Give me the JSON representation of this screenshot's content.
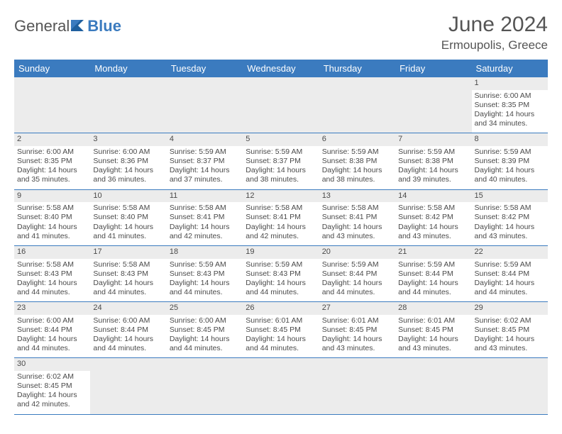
{
  "brand": {
    "part1": "General",
    "part2": "Blue"
  },
  "title": "June 2024",
  "location": "Ermoupolis, Greece",
  "colors": {
    "header_bg": "#3b7bbf",
    "header_text": "#ffffff",
    "daynum_bg": "#ececec",
    "text": "#4a4a4a",
    "rule": "#3b7bbf"
  },
  "day_headers": [
    "Sunday",
    "Monday",
    "Tuesday",
    "Wednesday",
    "Thursday",
    "Friday",
    "Saturday"
  ],
  "weeks": [
    [
      null,
      null,
      null,
      null,
      null,
      null,
      {
        "n": "1",
        "sr": "Sunrise: 6:00 AM",
        "ss": "Sunset: 8:35 PM",
        "dl": "Daylight: 14 hours and 34 minutes."
      }
    ],
    [
      {
        "n": "2",
        "sr": "Sunrise: 6:00 AM",
        "ss": "Sunset: 8:35 PM",
        "dl": "Daylight: 14 hours and 35 minutes."
      },
      {
        "n": "3",
        "sr": "Sunrise: 6:00 AM",
        "ss": "Sunset: 8:36 PM",
        "dl": "Daylight: 14 hours and 36 minutes."
      },
      {
        "n": "4",
        "sr": "Sunrise: 5:59 AM",
        "ss": "Sunset: 8:37 PM",
        "dl": "Daylight: 14 hours and 37 minutes."
      },
      {
        "n": "5",
        "sr": "Sunrise: 5:59 AM",
        "ss": "Sunset: 8:37 PM",
        "dl": "Daylight: 14 hours and 38 minutes."
      },
      {
        "n": "6",
        "sr": "Sunrise: 5:59 AM",
        "ss": "Sunset: 8:38 PM",
        "dl": "Daylight: 14 hours and 38 minutes."
      },
      {
        "n": "7",
        "sr": "Sunrise: 5:59 AM",
        "ss": "Sunset: 8:38 PM",
        "dl": "Daylight: 14 hours and 39 minutes."
      },
      {
        "n": "8",
        "sr": "Sunrise: 5:59 AM",
        "ss": "Sunset: 8:39 PM",
        "dl": "Daylight: 14 hours and 40 minutes."
      }
    ],
    [
      {
        "n": "9",
        "sr": "Sunrise: 5:58 AM",
        "ss": "Sunset: 8:40 PM",
        "dl": "Daylight: 14 hours and 41 minutes."
      },
      {
        "n": "10",
        "sr": "Sunrise: 5:58 AM",
        "ss": "Sunset: 8:40 PM",
        "dl": "Daylight: 14 hours and 41 minutes."
      },
      {
        "n": "11",
        "sr": "Sunrise: 5:58 AM",
        "ss": "Sunset: 8:41 PM",
        "dl": "Daylight: 14 hours and 42 minutes."
      },
      {
        "n": "12",
        "sr": "Sunrise: 5:58 AM",
        "ss": "Sunset: 8:41 PM",
        "dl": "Daylight: 14 hours and 42 minutes."
      },
      {
        "n": "13",
        "sr": "Sunrise: 5:58 AM",
        "ss": "Sunset: 8:41 PM",
        "dl": "Daylight: 14 hours and 43 minutes."
      },
      {
        "n": "14",
        "sr": "Sunrise: 5:58 AM",
        "ss": "Sunset: 8:42 PM",
        "dl": "Daylight: 14 hours and 43 minutes."
      },
      {
        "n": "15",
        "sr": "Sunrise: 5:58 AM",
        "ss": "Sunset: 8:42 PM",
        "dl": "Daylight: 14 hours and 43 minutes."
      }
    ],
    [
      {
        "n": "16",
        "sr": "Sunrise: 5:58 AM",
        "ss": "Sunset: 8:43 PM",
        "dl": "Daylight: 14 hours and 44 minutes."
      },
      {
        "n": "17",
        "sr": "Sunrise: 5:58 AM",
        "ss": "Sunset: 8:43 PM",
        "dl": "Daylight: 14 hours and 44 minutes."
      },
      {
        "n": "18",
        "sr": "Sunrise: 5:59 AM",
        "ss": "Sunset: 8:43 PM",
        "dl": "Daylight: 14 hours and 44 minutes."
      },
      {
        "n": "19",
        "sr": "Sunrise: 5:59 AM",
        "ss": "Sunset: 8:43 PM",
        "dl": "Daylight: 14 hours and 44 minutes."
      },
      {
        "n": "20",
        "sr": "Sunrise: 5:59 AM",
        "ss": "Sunset: 8:44 PM",
        "dl": "Daylight: 14 hours and 44 minutes."
      },
      {
        "n": "21",
        "sr": "Sunrise: 5:59 AM",
        "ss": "Sunset: 8:44 PM",
        "dl": "Daylight: 14 hours and 44 minutes."
      },
      {
        "n": "22",
        "sr": "Sunrise: 5:59 AM",
        "ss": "Sunset: 8:44 PM",
        "dl": "Daylight: 14 hours and 44 minutes."
      }
    ],
    [
      {
        "n": "23",
        "sr": "Sunrise: 6:00 AM",
        "ss": "Sunset: 8:44 PM",
        "dl": "Daylight: 14 hours and 44 minutes."
      },
      {
        "n": "24",
        "sr": "Sunrise: 6:00 AM",
        "ss": "Sunset: 8:44 PM",
        "dl": "Daylight: 14 hours and 44 minutes."
      },
      {
        "n": "25",
        "sr": "Sunrise: 6:00 AM",
        "ss": "Sunset: 8:45 PM",
        "dl": "Daylight: 14 hours and 44 minutes."
      },
      {
        "n": "26",
        "sr": "Sunrise: 6:01 AM",
        "ss": "Sunset: 8:45 PM",
        "dl": "Daylight: 14 hours and 44 minutes."
      },
      {
        "n": "27",
        "sr": "Sunrise: 6:01 AM",
        "ss": "Sunset: 8:45 PM",
        "dl": "Daylight: 14 hours and 43 minutes."
      },
      {
        "n": "28",
        "sr": "Sunrise: 6:01 AM",
        "ss": "Sunset: 8:45 PM",
        "dl": "Daylight: 14 hours and 43 minutes."
      },
      {
        "n": "29",
        "sr": "Sunrise: 6:02 AM",
        "ss": "Sunset: 8:45 PM",
        "dl": "Daylight: 14 hours and 43 minutes."
      }
    ],
    [
      {
        "n": "30",
        "sr": "Sunrise: 6:02 AM",
        "ss": "Sunset: 8:45 PM",
        "dl": "Daylight: 14 hours and 42 minutes."
      },
      null,
      null,
      null,
      null,
      null,
      null
    ]
  ]
}
